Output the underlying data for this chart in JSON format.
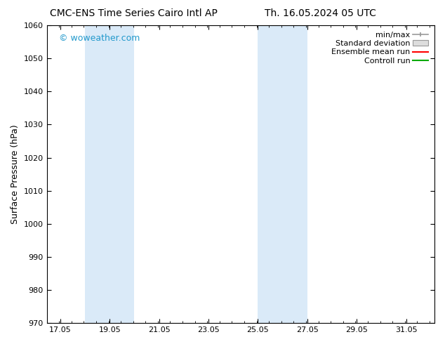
{
  "title_left": "CMC-ENS Time Series Cairo Intl AP",
  "title_right": "Th. 16.05.2024 05 UTC",
  "ylabel": "Surface Pressure (hPa)",
  "ylim": [
    970,
    1060
  ],
  "yticks": [
    970,
    980,
    990,
    1000,
    1010,
    1020,
    1030,
    1040,
    1050,
    1060
  ],
  "xlim_start": 16.5,
  "xlim_end": 32.2,
  "xtick_labels": [
    "17.05",
    "19.05",
    "21.05",
    "23.05",
    "25.05",
    "27.05",
    "29.05",
    "31.05"
  ],
  "xtick_positions": [
    17.05,
    19.05,
    21.05,
    23.05,
    25.05,
    27.05,
    29.05,
    31.05
  ],
  "shaded_bands": [
    {
      "x_start": 18.05,
      "x_end": 20.05
    },
    {
      "x_start": 25.05,
      "x_end": 27.05
    }
  ],
  "shaded_color": "#daeaf8",
  "watermark": "© woweather.com",
  "watermark_color": "#2299cc",
  "watermark_fontsize": 9,
  "legend_labels": [
    "min/max",
    "Standard deviation",
    "Ensemble mean run",
    "Controll run"
  ],
  "legend_colors_line": [
    "#999999",
    null,
    "#ff0000",
    "#00aa00"
  ],
  "bg_color": "#ffffff",
  "title_fontsize": 10,
  "ylabel_fontsize": 9,
  "tick_fontsize": 8,
  "legend_fontsize": 8
}
